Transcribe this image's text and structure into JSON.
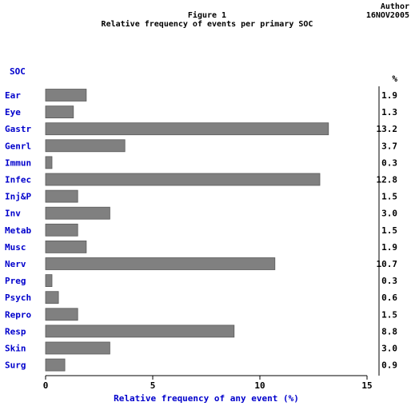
{
  "header": {
    "author_label": "Author",
    "date_label": "16NOV2005"
  },
  "chart_data": {
    "type": "bar",
    "orientation": "horizontal",
    "title": "Figure 1",
    "subtitle": "Relative frequency of events per primary SOC",
    "category_axis_label": "SOC",
    "value_column_label": "%",
    "xlabel": "Relative frequency of any event (%)",
    "xlim": [
      0,
      15
    ],
    "xticks": [
      0,
      5,
      10,
      15
    ],
    "grid": false,
    "categories": [
      "Ear",
      "Eye",
      "Gastr",
      "Genrl",
      "Immun",
      "Infec",
      "Inj&P",
      "Inv",
      "Metab",
      "Musc",
      "Nerv",
      "Preg",
      "Psych",
      "Repro",
      "Resp",
      "Skin",
      "Surg"
    ],
    "values": [
      1.9,
      1.3,
      13.2,
      3.7,
      0.3,
      12.8,
      1.5,
      3.0,
      1.5,
      1.9,
      10.7,
      0.3,
      0.6,
      1.5,
      8.8,
      3.0,
      0.9
    ],
    "value_labels": [
      "1.9",
      "1.3",
      "13.2",
      "3.7",
      "0.3",
      "12.8",
      "1.5",
      "3.0",
      "1.5",
      "1.9",
      "10.7",
      "0.3",
      "0.6",
      "1.5",
      "8.8",
      "3.0",
      "0.9"
    ],
    "colors": {
      "bar": "#808080",
      "bar_outline": "#5a5a5a",
      "category_text": "#0000cc",
      "axis_title_text": "#0000cc",
      "axis": "#000000"
    }
  }
}
